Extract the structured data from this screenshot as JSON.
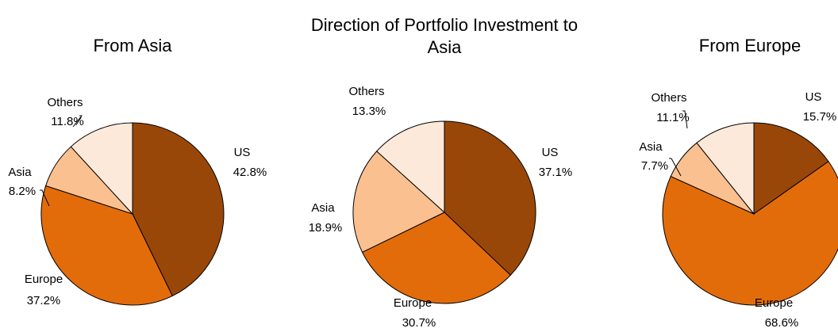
{
  "chart_data": [
    {
      "type": "pie",
      "title": "From Asia",
      "categories": [
        "US",
        "Europe",
        "Asia",
        "Others"
      ],
      "values": [
        42.8,
        37.2,
        8.2,
        11.8
      ],
      "value_labels": [
        "42.8%",
        "37.2%",
        "8.2%",
        "11.8%"
      ],
      "colors": [
        "#994709",
        "#e36c0a",
        "#fac090",
        "#fde9d9"
      ]
    },
    {
      "type": "pie",
      "title": "Direction of Portfolio Investment to Asia",
      "categories": [
        "US",
        "Europe",
        "Asia",
        "Others"
      ],
      "values": [
        37.1,
        30.7,
        18.9,
        13.3
      ],
      "value_labels": [
        "37.1%",
        "30.7%",
        "18.9%",
        "13.3%"
      ],
      "colors": [
        "#994709",
        "#e36c0a",
        "#fac090",
        "#fde9d9"
      ]
    },
    {
      "type": "pie",
      "title": "From Europe",
      "categories": [
        "US",
        "Europe",
        "Asia",
        "Others"
      ],
      "values": [
        15.7,
        68.6,
        7.7,
        11.1
      ],
      "value_labels": [
        "15.7%",
        "68.6%",
        "7.7%",
        "11.1%"
      ],
      "colors": [
        "#994709",
        "#e36c0a",
        "#fac090",
        "#fde9d9"
      ]
    }
  ]
}
